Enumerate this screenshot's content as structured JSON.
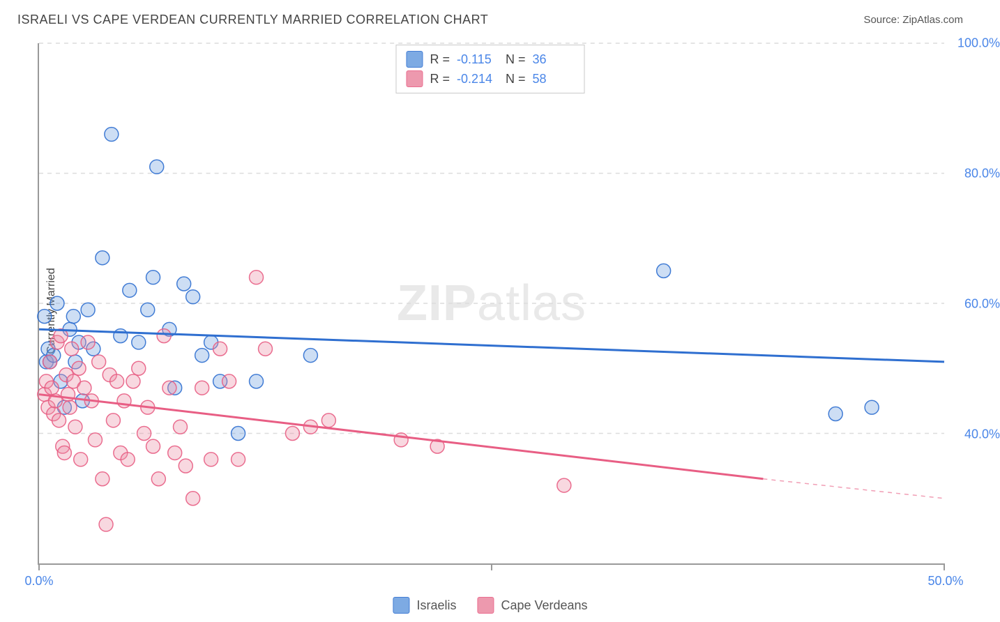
{
  "title": "ISRAELI VS CAPE VERDEAN CURRENTLY MARRIED CORRELATION CHART",
  "source_label": "Source: ZipAtlas.com",
  "y_axis_title": "Currently Married",
  "watermark": {
    "bold": "ZIP",
    "rest": "atlas"
  },
  "chart": {
    "type": "scatter",
    "background_color": "#ffffff",
    "grid_color": "#dcdcdc",
    "axis_color": "#999999",
    "xlim": [
      0,
      50
    ],
    "ylim": [
      20,
      100
    ],
    "x_ticks": [
      {
        "v": 0,
        "label": "0.0%"
      },
      {
        "v": 25,
        "label": ""
      },
      {
        "v": 50,
        "label": "50.0%"
      }
    ],
    "y_ticks": [
      {
        "v": 40,
        "label": "40.0%"
      },
      {
        "v": 60,
        "label": "60.0%"
      },
      {
        "v": 80,
        "label": "80.0%"
      },
      {
        "v": 100,
        "label": "100.0%"
      }
    ],
    "marker_radius": 10,
    "marker_fill_opacity": 0.35,
    "marker_stroke_opacity": 0.9,
    "marker_stroke_width": 1.5,
    "trend_line_width": 3
  },
  "series": [
    {
      "name": "Israelis",
      "color": "#6fa1e0",
      "line_color": "#2f6fd0",
      "R": "-0.115",
      "N": "36",
      "trend": {
        "x0": 0,
        "y0": 56,
        "x1": 50,
        "y1": 51
      },
      "points": [
        [
          0.3,
          58
        ],
        [
          0.4,
          51
        ],
        [
          0.5,
          53
        ],
        [
          0.6,
          51
        ],
        [
          0.8,
          52
        ],
        [
          1.0,
          60
        ],
        [
          1.2,
          48
        ],
        [
          1.4,
          44
        ],
        [
          1.7,
          56
        ],
        [
          1.9,
          58
        ],
        [
          2.0,
          51
        ],
        [
          2.2,
          54
        ],
        [
          2.4,
          45
        ],
        [
          2.7,
          59
        ],
        [
          3.0,
          53
        ],
        [
          3.5,
          67
        ],
        [
          4.0,
          86
        ],
        [
          4.5,
          55
        ],
        [
          5.0,
          62
        ],
        [
          5.5,
          54
        ],
        [
          6.0,
          59
        ],
        [
          6.3,
          64
        ],
        [
          6.5,
          81
        ],
        [
          7.2,
          56
        ],
        [
          7.5,
          47
        ],
        [
          8.0,
          63
        ],
        [
          8.5,
          61
        ],
        [
          9.0,
          52
        ],
        [
          9.5,
          54
        ],
        [
          10.0,
          48
        ],
        [
          11.0,
          40
        ],
        [
          12.0,
          48
        ],
        [
          15.0,
          52
        ],
        [
          34.5,
          65
        ],
        [
          44.0,
          43
        ],
        [
          46.0,
          44
        ]
      ]
    },
    {
      "name": "Cape Verdeans",
      "color": "#ec8fa6",
      "line_color": "#e85e84",
      "R": "-0.214",
      "N": "58",
      "trend": {
        "x0": 0,
        "y0": 46,
        "x1": 40,
        "y1": 33,
        "extrap_x1": 50,
        "extrap_y1": 30
      },
      "points": [
        [
          0.3,
          46
        ],
        [
          0.4,
          48
        ],
        [
          0.5,
          44
        ],
        [
          0.6,
          51
        ],
        [
          0.7,
          47
        ],
        [
          0.8,
          43
        ],
        [
          0.9,
          45
        ],
        [
          1.0,
          54
        ],
        [
          1.1,
          42
        ],
        [
          1.2,
          55
        ],
        [
          1.3,
          38
        ],
        [
          1.4,
          37
        ],
        [
          1.5,
          49
        ],
        [
          1.6,
          46
        ],
        [
          1.7,
          44
        ],
        [
          1.8,
          53
        ],
        [
          1.9,
          48
        ],
        [
          2.0,
          41
        ],
        [
          2.2,
          50
        ],
        [
          2.3,
          36
        ],
        [
          2.5,
          47
        ],
        [
          2.7,
          54
        ],
        [
          2.9,
          45
        ],
        [
          3.1,
          39
        ],
        [
          3.3,
          51
        ],
        [
          3.5,
          33
        ],
        [
          3.7,
          26
        ],
        [
          3.9,
          49
        ],
        [
          4.1,
          42
        ],
        [
          4.3,
          48
        ],
        [
          4.5,
          37
        ],
        [
          4.7,
          45
        ],
        [
          4.9,
          36
        ],
        [
          5.2,
          48
        ],
        [
          5.5,
          50
        ],
        [
          5.8,
          40
        ],
        [
          6.0,
          44
        ],
        [
          6.3,
          38
        ],
        [
          6.6,
          33
        ],
        [
          6.9,
          55
        ],
        [
          7.2,
          47
        ],
        [
          7.5,
          37
        ],
        [
          7.8,
          41
        ],
        [
          8.1,
          35
        ],
        [
          8.5,
          30
        ],
        [
          9.0,
          47
        ],
        [
          9.5,
          36
        ],
        [
          10.0,
          53
        ],
        [
          10.5,
          48
        ],
        [
          11.0,
          36
        ],
        [
          12.0,
          64
        ],
        [
          12.5,
          53
        ],
        [
          14.0,
          40
        ],
        [
          15.0,
          41
        ],
        [
          16.0,
          42
        ],
        [
          20.0,
          39
        ],
        [
          29.0,
          32
        ],
        [
          22.0,
          38
        ]
      ]
    }
  ],
  "stats_legend": {
    "labels": {
      "R": "R  =",
      "N": "N  ="
    }
  },
  "bottom_legend": {
    "items": [
      "Israelis",
      "Cape Verdeans"
    ]
  }
}
